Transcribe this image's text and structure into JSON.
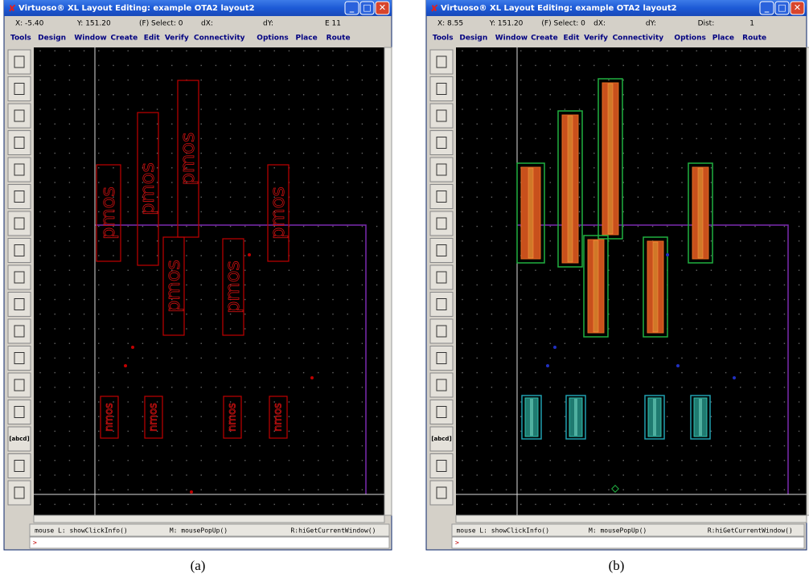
{
  "windows": [
    {
      "title": "Virtuoso® XL Layout Editing: example OTA2 layout2",
      "status": [
        "X: -5.40",
        "Y: 151.20",
        "(F) Select: 0",
        "dX:",
        "dY:",
        "E 11"
      ],
      "menu": [
        "Tools",
        "Design",
        "Window",
        "Create",
        "Edit",
        "Verify",
        "Connectivity",
        "Options",
        "Place",
        "Route"
      ],
      "toolbar_label": "[abcd]",
      "cells": [
        "pmos",
        "pmos",
        "pmos",
        "pmos",
        "pmos",
        "pmos",
        "nmos",
        "nmos",
        "nmos",
        "nmos"
      ],
      "footer": [
        "mouse L: showClickInfo()",
        "M: mousePopUp()",
        "R:hiGetCurrentWindow()"
      ],
      "prompt": ">",
      "caption": "(a)"
    },
    {
      "title": "Virtuoso® XL Layout Editing: example OTA2 layout2",
      "status": [
        "X: 8.55",
        "Y: 151.20",
        "(F) Select: 0",
        "dX:",
        "dY:",
        "Dist:",
        "1"
      ],
      "menu": [
        "Tools",
        "Design",
        "Window",
        "Create",
        "Edit",
        "Verify",
        "Connectivity",
        "Options",
        "Place",
        "Route"
      ],
      "toolbar_label": "[abcd]",
      "footer": [
        "mouse L: showClickInfo()",
        "M: mousePopUp()",
        "R:hiGetCurrentWindow()"
      ],
      "prompt": ">",
      "caption": "(b)"
    }
  ]
}
